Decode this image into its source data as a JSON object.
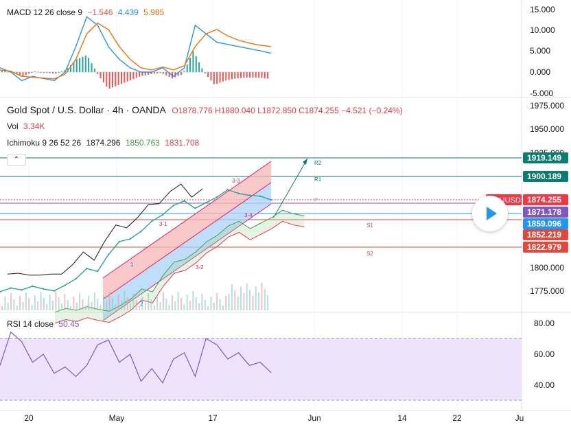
{
  "macd": {
    "label": "MACD 12 26 close 9",
    "hist": "−1.546",
    "macd": "4.439",
    "signal": "5.985",
    "ticks": [
      "15.000",
      "10.000",
      "5.000",
      "0.000",
      "-5.000"
    ]
  },
  "main": {
    "symbol": "Gold Spot / U.S. Dollar · 4h · OANDA",
    "ohlc": "O1878.776  H1880.040  L1872.850  C1874.255  −4.521 (−0.24%)",
    "vol_label": "Vol",
    "vol_value": "3.34K",
    "ichimoku_label": "Ichimoku 9 26 52 26",
    "ich_v1": "1874.296",
    "ich_v2": "1850.763",
    "ich_v3": "1831.708",
    "ticks": [
      "1975.000",
      "1950.000",
      "1925.000",
      "1800.000",
      "1775.000"
    ],
    "pivot_labels": [
      "R2",
      "R1",
      "P",
      "S1",
      "S2"
    ],
    "small_labels": [
      "3-3",
      "3-1",
      "3-4",
      "3-2",
      "1",
      "2"
    ]
  },
  "price_badges": [
    {
      "value": "1919.149",
      "color": "#0b7d6e"
    },
    {
      "value": "1900.189",
      "color": "#0b7d6e"
    },
    {
      "value": "1874.255",
      "color": "#f23645",
      "label": "XAUUSD"
    },
    {
      "value": "1871.178",
      "color": "#7e57c2"
    },
    {
      "value": "1859.096",
      "color": "#2196f3"
    },
    {
      "value": "1852.219",
      "color": "#e0483c"
    },
    {
      "value": "1822.979",
      "color": "#e0483c"
    }
  ],
  "rsi": {
    "label": "RSI 14 close",
    "value": "50.45",
    "ticks": [
      "80.00",
      "60.00",
      "40.00"
    ]
  },
  "time_axis": [
    "20",
    "May",
    "17",
    "Jun",
    "14",
    "22",
    "Ju"
  ],
  "colors": {
    "macd_line": "#2196f3",
    "signal_line": "#ff6d00",
    "hist_up": "#26a69a",
    "hist_down": "#ef5350",
    "rsi_line": "#7e57c2",
    "rsi_band": "#efe3fb",
    "up_channel": "#f7b6b6",
    "down_channel": "#a9d3f7"
  },
  "chart_data": {
    "type": "line",
    "title": "Gold Spot / U.S. Dollar · 4h · OANDA",
    "ylim": [
      1755,
      1980
    ],
    "x": [
      0,
      4,
      8,
      12,
      16,
      20,
      24,
      28,
      32,
      36,
      40,
      44,
      48,
      52,
      56,
      60,
      64,
      68,
      72,
      76,
      80,
      84,
      88,
      92,
      96,
      100
    ],
    "series": [
      {
        "name": "XAUUSD",
        "values": [
          1775,
          1779,
          1777,
          1781,
          1778,
          1776,
          1782,
          1789,
          1800,
          1797,
          1815,
          1829,
          1832,
          1840,
          1851,
          1858,
          1868,
          1873,
          1865,
          1871,
          1877,
          1885,
          1881,
          1879,
          1878,
          1874
        ]
      }
    ],
    "macd": {
      "ylim": [
        -5,
        15
      ],
      "macd": [
        1,
        0,
        -2,
        -1,
        -1.5,
        -2,
        0,
        6,
        13,
        11,
        6,
        3,
        1,
        0,
        0,
        1,
        -1,
        1,
        11,
        9,
        7,
        6.5,
        6,
        5.5,
        5,
        4.439
      ],
      "signal": [
        0.5,
        0.2,
        -1,
        -1.2,
        -1.4,
        -1.6,
        -0.5,
        3,
        9,
        11.5,
        10,
        6,
        3,
        1,
        0.5,
        1.2,
        0.5,
        1.5,
        6,
        9,
        10,
        8.5,
        7.5,
        6.8,
        6.3,
        5.985
      ]
    },
    "rsi": {
      "ylim": [
        30,
        85
      ],
      "values": [
        55,
        76,
        70,
        57,
        62,
        50,
        54,
        48,
        55,
        68,
        71,
        57,
        62,
        45,
        53,
        44,
        59,
        63,
        48,
        72,
        68,
        59,
        63,
        55,
        57,
        50.45
      ]
    }
  }
}
